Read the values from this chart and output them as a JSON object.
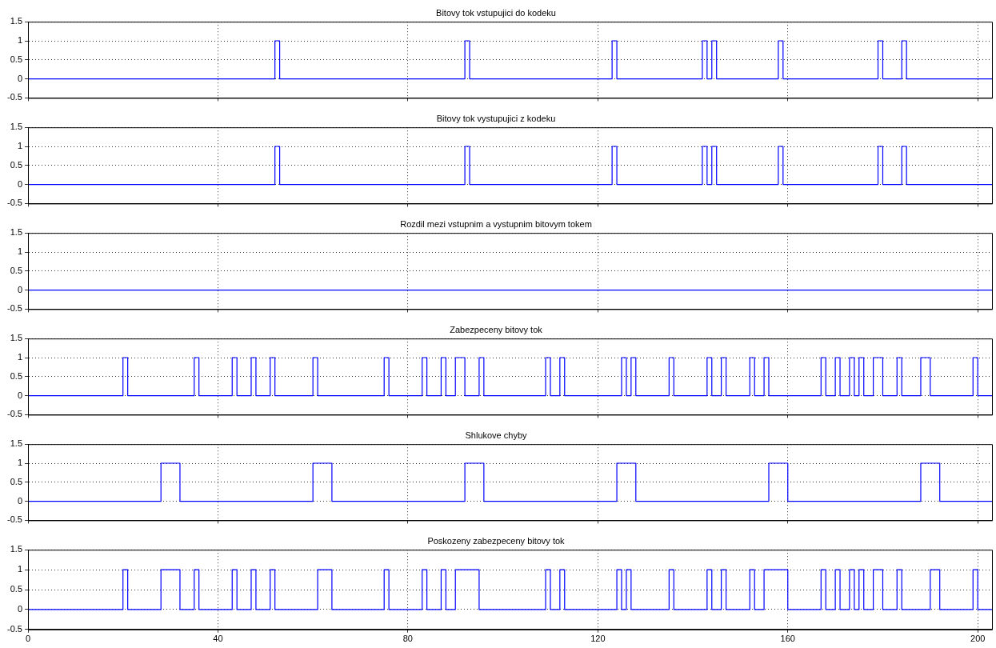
{
  "chart_data": [
    {
      "type": "step",
      "title": "Bitovy tok vstupujici do kodeku",
      "x": [
        0,
        52,
        53,
        92,
        93,
        123,
        124,
        142,
        143,
        144,
        145,
        158,
        159,
        179,
        180,
        184,
        185,
        203
      ],
      "values": [
        0,
        1,
        0,
        1,
        0,
        1,
        0,
        1,
        0,
        1,
        0,
        1,
        0,
        1,
        0,
        1,
        0,
        0
      ],
      "color": "#0000ff",
      "xlim": [
        0,
        203
      ],
      "xticks": [
        0,
        40,
        80,
        120,
        160,
        200
      ],
      "ylim": [
        -0.5,
        1.5
      ],
      "yticks": [
        -0.5,
        0,
        0.5,
        1,
        1.5
      ],
      "grid": true,
      "tick_labels": "y"
    },
    {
      "type": "step",
      "title": "Bitovy tok vystupujici z kodeku",
      "x": [
        0,
        52,
        53,
        92,
        93,
        123,
        124,
        142,
        143,
        144,
        145,
        158,
        159,
        179,
        180,
        184,
        185,
        203
      ],
      "values": [
        0,
        1,
        0,
        1,
        0,
        1,
        0,
        1,
        0,
        1,
        0,
        1,
        0,
        1,
        0,
        1,
        0,
        0
      ],
      "color": "#0000ff",
      "xlim": [
        0,
        203
      ],
      "xticks": [
        0,
        40,
        80,
        120,
        160,
        200
      ],
      "ylim": [
        -0.5,
        1.5
      ],
      "yticks": [
        -0.5,
        0,
        0.5,
        1,
        1.5
      ],
      "grid": true,
      "tick_labels": "y"
    },
    {
      "type": "step",
      "title": "Rozdil mezi vstupnim a vystupnim bitovym tokem",
      "x": [
        0,
        203
      ],
      "values": [
        0,
        0
      ],
      "color": "#0000ff",
      "xlim": [
        0,
        203
      ],
      "xticks": [
        0,
        40,
        80,
        120,
        160,
        200
      ],
      "ylim": [
        -0.5,
        1.5
      ],
      "yticks": [
        -0.5,
        0,
        0.5,
        1,
        1.5
      ],
      "grid": true,
      "tick_labels": "y"
    },
    {
      "type": "step",
      "title": "Zabezpeceny bitovy tok",
      "x": [
        0,
        20,
        21,
        35,
        36,
        43,
        44,
        47,
        48,
        51,
        52,
        60,
        61,
        75,
        76,
        83,
        84,
        87,
        88,
        90,
        92,
        95,
        96,
        109,
        110,
        112,
        113,
        125,
        126,
        127,
        128,
        135,
        136,
        143,
        144,
        146,
        147,
        152,
        153,
        155,
        156,
        167,
        168,
        170,
        171,
        173,
        174,
        175,
        176,
        178,
        180,
        183,
        184,
        188,
        190,
        199,
        200,
        203
      ],
      "values": [
        0,
        1,
        0,
        1,
        0,
        1,
        0,
        1,
        0,
        1,
        0,
        1,
        0,
        1,
        0,
        1,
        0,
        1,
        0,
        1,
        0,
        1,
        0,
        1,
        0,
        1,
        0,
        1,
        0,
        1,
        0,
        1,
        0,
        1,
        0,
        1,
        0,
        1,
        0,
        1,
        0,
        1,
        0,
        1,
        0,
        1,
        0,
        1,
        0,
        1,
        0,
        1,
        0,
        1,
        0,
        1,
        0,
        0
      ],
      "color": "#0000ff",
      "xlim": [
        0,
        203
      ],
      "xticks": [
        0,
        40,
        80,
        120,
        160,
        200
      ],
      "ylim": [
        -0.5,
        1.5
      ],
      "yticks": [
        -0.5,
        0,
        0.5,
        1,
        1.5
      ],
      "grid": true,
      "tick_labels": "y"
    },
    {
      "type": "step",
      "title": "Shlukove chyby",
      "x": [
        0,
        28,
        32,
        60,
        64,
        92,
        96,
        124,
        128,
        156,
        160,
        188,
        192,
        203
      ],
      "values": [
        0,
        1,
        0,
        1,
        0,
        1,
        0,
        1,
        0,
        1,
        0,
        1,
        0,
        0
      ],
      "color": "#0000ff",
      "xlim": [
        0,
        203
      ],
      "xticks": [
        0,
        40,
        80,
        120,
        160,
        200
      ],
      "ylim": [
        -0.5,
        1.5
      ],
      "yticks": [
        -0.5,
        0,
        0.5,
        1,
        1.5
      ],
      "grid": true,
      "tick_labels": "y"
    },
    {
      "type": "step",
      "title": "Poskozeny zabezpeceny bitovy tok",
      "x": [
        0,
        20,
        21,
        28,
        32,
        35,
        36,
        43,
        44,
        47,
        48,
        51,
        52,
        61,
        64,
        75,
        76,
        83,
        84,
        87,
        88,
        90,
        95,
        109,
        110,
        112,
        113,
        124,
        125,
        126,
        127,
        135,
        136,
        143,
        144,
        146,
        147,
        152,
        153,
        155,
        160,
        167,
        168,
        170,
        171,
        173,
        174,
        175,
        176,
        178,
        180,
        183,
        184,
        190,
        192,
        199,
        200,
        203
      ],
      "values": [
        0,
        1,
        0,
        1,
        0,
        1,
        0,
        1,
        0,
        1,
        0,
        1,
        0,
        1,
        0,
        1,
        0,
        1,
        0,
        1,
        0,
        1,
        0,
        1,
        0,
        1,
        0,
        1,
        0,
        1,
        0,
        1,
        0,
        1,
        0,
        1,
        0,
        1,
        0,
        1,
        0,
        1,
        0,
        1,
        0,
        1,
        0,
        1,
        0,
        1,
        0,
        1,
        0,
        1,
        0,
        1,
        0,
        0
      ],
      "color": "#0000ff",
      "xlim": [
        0,
        203
      ],
      "xticks": [
        0,
        40,
        80,
        120,
        160,
        200
      ],
      "ylim": [
        -0.5,
        1.5
      ],
      "yticks": [
        -0.5,
        0,
        0.5,
        1,
        1.5
      ],
      "grid": true
    }
  ]
}
